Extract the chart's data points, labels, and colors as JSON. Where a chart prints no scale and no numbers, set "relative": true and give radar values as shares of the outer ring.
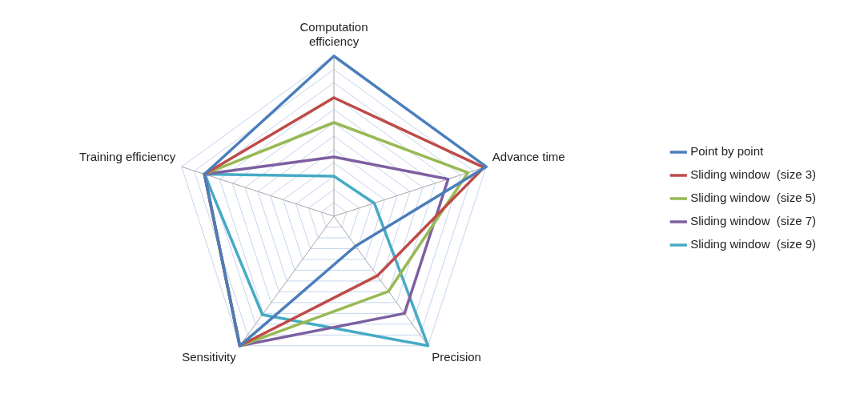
{
  "chart_data": {
    "type": "radar",
    "relative": true,
    "categories": [
      "Computation efficiency",
      "Advance time",
      "Precision",
      "Sensitivity",
      "Training efficiency"
    ],
    "legend": "right",
    "grid": true,
    "marker": "none",
    "series": [
      {
        "name": "Point by point",
        "color": "#4a7ebb",
        "values": [
          1.0,
          1.0,
          0.23,
          1.0,
          0.85
        ]
      },
      {
        "name": "Sliding window  (size 3)",
        "color": "#be4b48",
        "values": [
          0.74,
          0.985,
          0.46,
          1.0,
          0.85
        ]
      },
      {
        "name": "Sliding window  (size 5)",
        "color": "#98b954",
        "values": [
          0.585,
          0.88,
          0.58,
          1.0,
          0.85
        ]
      },
      {
        "name": "Sliding window  (size 7)",
        "color": "#7d60a0",
        "values": [
          0.37,
          0.75,
          0.75,
          1.0,
          0.85
        ]
      },
      {
        "name": "Sliding window  (size 9)",
        "color": "#46aac5",
        "values": [
          0.25,
          0.265,
          1.0,
          0.76,
          0.85
        ]
      }
    ]
  }
}
